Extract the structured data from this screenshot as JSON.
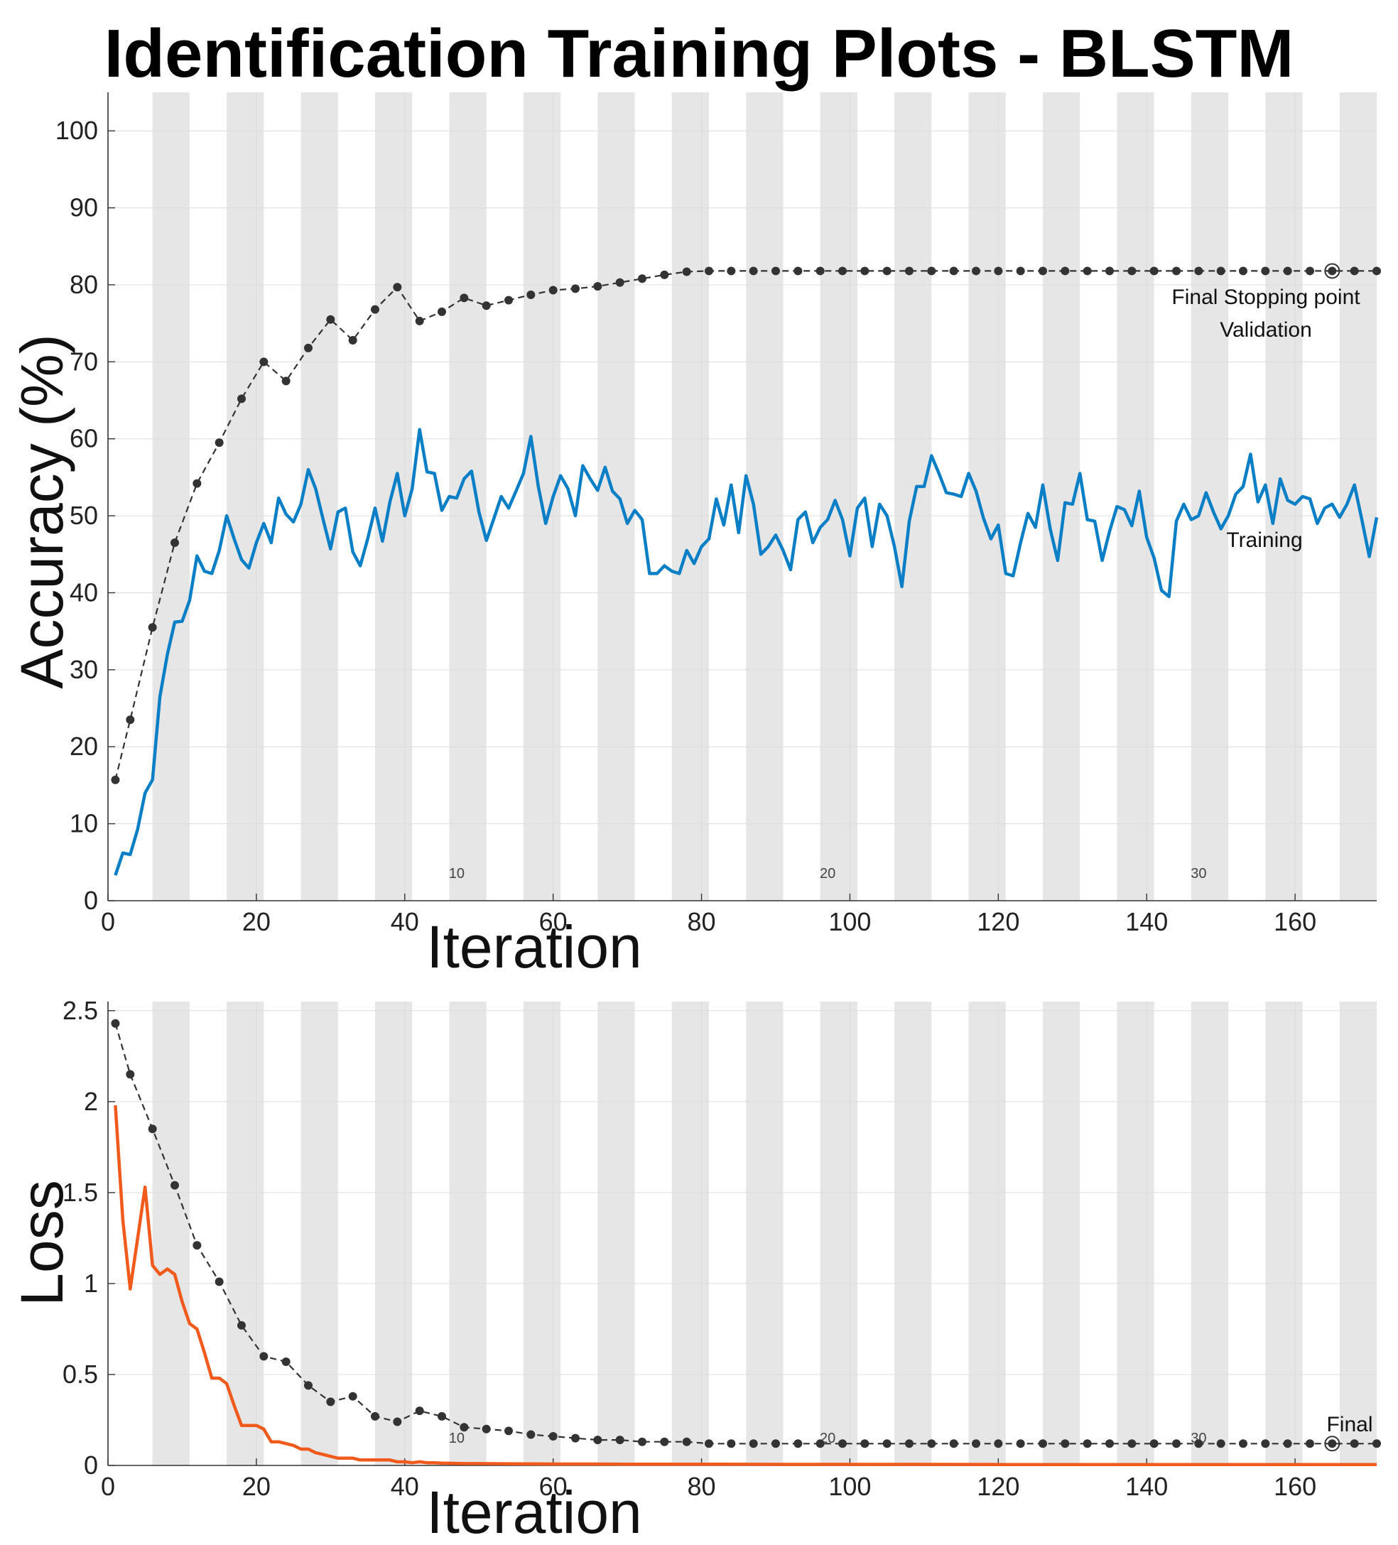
{
  "title": "Identification Training Plots - BLSTM",
  "chart_data": [
    {
      "name": "accuracy",
      "type": "line",
      "xlabel": "Iteration",
      "ylabel": "Accuracy (%)",
      "xlim": [
        0,
        171
      ],
      "ylim": [
        0,
        105
      ],
      "xticks": [
        0,
        20,
        40,
        60,
        80,
        100,
        120,
        140,
        160
      ],
      "yticks": [
        0,
        10,
        20,
        30,
        40,
        50,
        60,
        70,
        80,
        90,
        100
      ],
      "grid": true,
      "epoch_band_width": 5,
      "epoch_labels": [
        {
          "iteration": 47,
          "label": "10"
        },
        {
          "iteration": 97,
          "label": "20"
        },
        {
          "iteration": 147,
          "label": "30"
        }
      ],
      "annotations": {
        "final_line1": "Final Stopping point",
        "final_line2": "Validation",
        "training": "Training"
      },
      "final_point": [
        165,
        81.8
      ],
      "series": [
        {
          "name": "Training",
          "color": "#0a7fc6",
          "style": "solid",
          "x": [
            1,
            2,
            3,
            4,
            5,
            6,
            7,
            8,
            9,
            10,
            11,
            12,
            13,
            14,
            15,
            16,
            17,
            18,
            19,
            20,
            21,
            22,
            23,
            24,
            25,
            26,
            27,
            28,
            29,
            30,
            31,
            32,
            33,
            34,
            35,
            36,
            37,
            38,
            39,
            40,
            41,
            42,
            43,
            44,
            45,
            46,
            47,
            48,
            49,
            50,
            51,
            52,
            53,
            54,
            55,
            56,
            57,
            58,
            59,
            60,
            61,
            62,
            63,
            64,
            65,
            66,
            67,
            68,
            69,
            70,
            71,
            72,
            73,
            74,
            75,
            76,
            77,
            78,
            79,
            80,
            81,
            82,
            83,
            84,
            85,
            86,
            87,
            88,
            89,
            90,
            91,
            92,
            93,
            94,
            95,
            96,
            97,
            98,
            99,
            100,
            101,
            102,
            103,
            104,
            105,
            106,
            107,
            108,
            109,
            110,
            111,
            112,
            113,
            114,
            115,
            116,
            117,
            118,
            119,
            120,
            121,
            122,
            123,
            124,
            125,
            126,
            127,
            128,
            129,
            130,
            131,
            132,
            133,
            134,
            135,
            136,
            137,
            138,
            139,
            140,
            141,
            142,
            143,
            144,
            145,
            146,
            147,
            148,
            149,
            150,
            151,
            152,
            153,
            154,
            155,
            156,
            157,
            158,
            159,
            160,
            161,
            162,
            163,
            164,
            165,
            166,
            167,
            168,
            169,
            170,
            171
          ],
          "values": [
            3.3,
            6.2,
            6.0,
            9.3,
            14.0,
            15.7,
            26.5,
            32.0,
            36.2,
            36.3,
            39.0,
            44.8,
            42.8,
            42.5,
            45.5,
            50.0,
            47.0,
            44.3,
            43.2,
            46.5,
            49.0,
            46.5,
            52.3,
            50.2,
            49.2,
            51.5,
            56.0,
            53.5,
            49.5,
            45.7,
            50.5,
            51.0,
            45.3,
            43.5,
            47.0,
            51.0,
            46.7,
            51.8,
            55.5,
            50.0,
            53.5,
            61.2,
            55.7,
            55.5,
            50.7,
            52.5,
            52.3,
            54.8,
            55.8,
            50.5,
            46.8,
            49.6,
            52.5,
            51.0,
            53.2,
            55.5,
            60.3,
            53.8,
            49.0,
            52.5,
            55.2,
            53.5,
            50.0,
            56.5,
            54.8,
            53.3,
            56.3,
            53.2,
            52.2,
            49.0,
            50.7,
            49.5,
            42.5,
            42.5,
            43.5,
            42.8,
            42.5,
            45.5,
            43.8,
            46.0,
            47.0,
            52.2,
            48.8,
            54.0,
            47.8,
            55.2,
            51.5,
            45.0,
            46.0,
            47.5,
            45.5,
            43.0,
            49.5,
            50.5,
            46.5,
            48.5,
            49.5,
            52.0,
            49.5,
            44.8,
            51.0,
            52.3,
            46.0,
            51.5,
            50.0,
            46.0,
            40.8,
            49.3,
            53.8,
            53.8,
            57.8,
            55.5,
            53.0,
            52.8,
            52.5,
            55.5,
            53.2,
            49.7,
            47.0,
            48.8,
            42.5,
            42.2,
            46.5,
            50.3,
            48.5,
            54.0,
            48.3,
            44.2,
            51.7,
            51.5,
            55.5,
            49.5,
            49.3,
            44.2,
            48.0,
            51.2,
            50.8,
            48.7,
            53.2,
            47.2,
            44.5,
            40.3,
            39.5,
            49.3,
            51.5,
            49.5,
            50.0,
            53.0,
            50.5,
            48.3,
            50.0,
            52.8,
            53.8,
            58.0,
            51.8,
            54.0,
            49.0,
            54.8,
            52.0,
            51.5,
            52.5,
            52.2,
            49.0,
            51.0,
            51.5,
            49.8,
            51.5,
            54.0,
            49.5,
            44.7,
            49.8
          ]
        },
        {
          "name": "Validation",
          "color": "#333333",
          "style": "dashed-dots",
          "x": [
            1,
            3,
            6,
            9,
            12,
            15,
            18,
            21,
            24,
            27,
            30,
            33,
            36,
            39,
            42,
            45,
            48,
            51,
            54,
            57,
            60,
            63,
            66,
            69,
            72,
            75,
            78,
            81,
            84,
            87,
            90,
            93,
            96,
            99,
            102,
            105,
            108,
            111,
            114,
            117,
            120,
            123,
            126,
            129,
            132,
            135,
            138,
            141,
            144,
            147,
            150,
            153,
            156,
            159,
            162,
            165,
            168,
            171
          ],
          "values": [
            15.7,
            23.5,
            35.5,
            46.5,
            54.2,
            59.5,
            65.2,
            70.0,
            67.5,
            71.8,
            75.5,
            72.8,
            76.8,
            79.7,
            75.3,
            76.5,
            78.3,
            77.3,
            78.0,
            78.7,
            79.3,
            79.5,
            79.8,
            80.3,
            80.8,
            81.3,
            81.7,
            81.8,
            81.8,
            81.8,
            81.8,
            81.8,
            81.8,
            81.8,
            81.8,
            81.8,
            81.8,
            81.8,
            81.8,
            81.8,
            81.8,
            81.8,
            81.8,
            81.8,
            81.8,
            81.8,
            81.8,
            81.8,
            81.8,
            81.8,
            81.8,
            81.8,
            81.8,
            81.8,
            81.8,
            81.8,
            81.8,
            81.8
          ]
        }
      ]
    },
    {
      "name": "loss",
      "type": "line",
      "xlabel": "Iteration",
      "ylabel": "Loss",
      "xlim": [
        0,
        171
      ],
      "ylim": [
        0,
        2.55
      ],
      "xticks": [
        0,
        20,
        40,
        60,
        80,
        100,
        120,
        140,
        160
      ],
      "yticks": [
        0,
        0.5,
        1,
        1.5,
        2,
        2.5
      ],
      "grid": true,
      "epoch_band_width": 5,
      "epoch_labels": [
        {
          "iteration": 47,
          "label": "10"
        },
        {
          "iteration": 97,
          "label": "20"
        },
        {
          "iteration": 147,
          "label": "30"
        }
      ],
      "annotations": {
        "final": "Final"
      },
      "final_point": [
        165,
        0.12
      ],
      "series": [
        {
          "name": "Training",
          "color": "#f05a1c",
          "style": "solid",
          "x": [
            1,
            2,
            3,
            4,
            5,
            6,
            7,
            8,
            9,
            10,
            11,
            12,
            13,
            14,
            15,
            16,
            17,
            18,
            19,
            20,
            21,
            22,
            23,
            24,
            25,
            26,
            27,
            28,
            29,
            30,
            31,
            32,
            33,
            34,
            35,
            36,
            37,
            38,
            39,
            40,
            41,
            42,
            43,
            44,
            45,
            46,
            48,
            50,
            55,
            60,
            65,
            70,
            80,
            90,
            100,
            110,
            120,
            130,
            140,
            150,
            160,
            171
          ],
          "values": [
            1.98,
            1.35,
            0.97,
            1.25,
            1.53,
            1.1,
            1.05,
            1.08,
            1.05,
            0.9,
            0.78,
            0.75,
            0.62,
            0.48,
            0.48,
            0.45,
            0.33,
            0.22,
            0.22,
            0.22,
            0.2,
            0.13,
            0.13,
            0.12,
            0.11,
            0.09,
            0.09,
            0.07,
            0.06,
            0.05,
            0.04,
            0.04,
            0.04,
            0.03,
            0.03,
            0.03,
            0.03,
            0.03,
            0.02,
            0.02,
            0.015,
            0.02,
            0.015,
            0.015,
            0.013,
            0.012,
            0.01,
            0.01,
            0.009,
            0.008,
            0.008,
            0.007,
            0.007,
            0.006,
            0.006,
            0.006,
            0.005,
            0.005,
            0.005,
            0.005,
            0.005,
            0.005
          ]
        },
        {
          "name": "Validation",
          "color": "#333333",
          "style": "dashed-dots",
          "x": [
            1,
            3,
            6,
            9,
            12,
            15,
            18,
            21,
            24,
            27,
            30,
            33,
            36,
            39,
            42,
            45,
            48,
            51,
            54,
            57,
            60,
            63,
            66,
            69,
            72,
            75,
            78,
            81,
            84,
            87,
            90,
            93,
            96,
            99,
            102,
            105,
            108,
            111,
            114,
            117,
            120,
            123,
            126,
            129,
            132,
            135,
            138,
            141,
            144,
            147,
            150,
            153,
            156,
            159,
            162,
            165,
            168,
            171
          ],
          "values": [
            2.43,
            2.15,
            1.85,
            1.54,
            1.21,
            1.01,
            0.77,
            0.6,
            0.57,
            0.44,
            0.35,
            0.38,
            0.27,
            0.24,
            0.3,
            0.27,
            0.21,
            0.2,
            0.19,
            0.17,
            0.16,
            0.15,
            0.14,
            0.14,
            0.13,
            0.13,
            0.13,
            0.12,
            0.12,
            0.12,
            0.12,
            0.12,
            0.12,
            0.12,
            0.12,
            0.12,
            0.12,
            0.12,
            0.12,
            0.12,
            0.12,
            0.12,
            0.12,
            0.12,
            0.12,
            0.12,
            0.12,
            0.12,
            0.12,
            0.12,
            0.12,
            0.12,
            0.12,
            0.12,
            0.12,
            0.12,
            0.12,
            0.12
          ]
        }
      ]
    }
  ]
}
